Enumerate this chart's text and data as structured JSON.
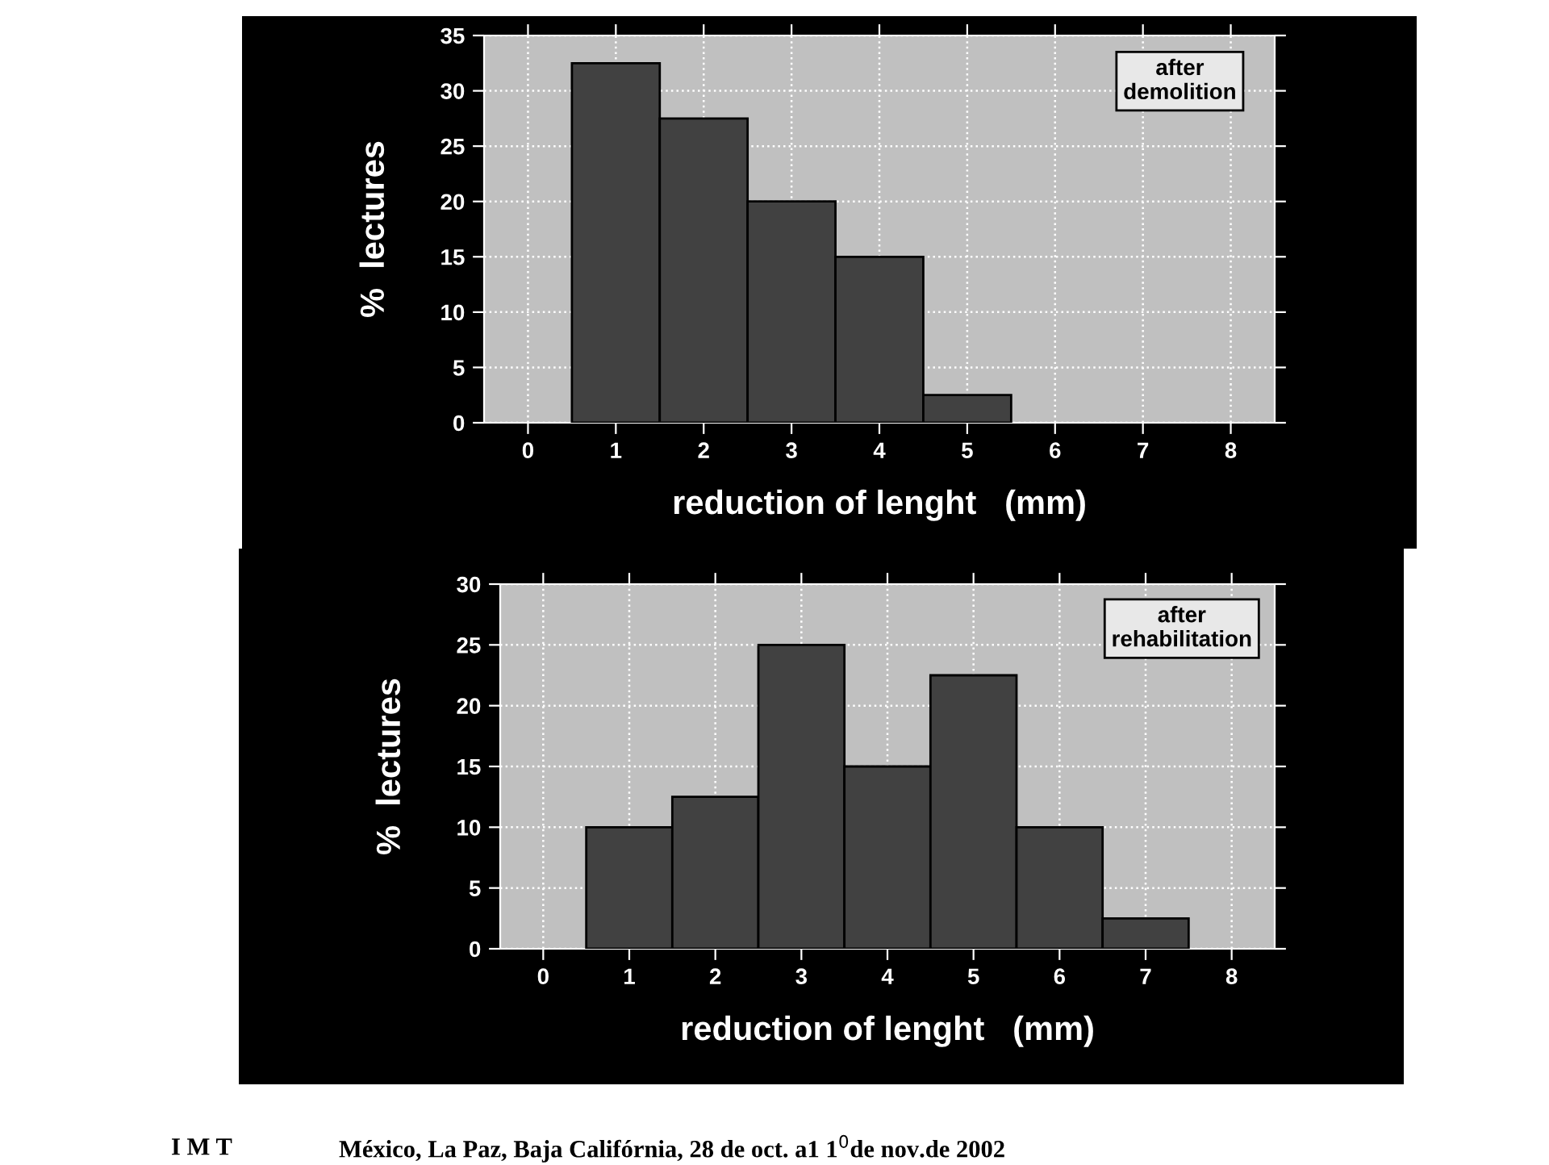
{
  "chart_data": [
    {
      "type": "histogram",
      "xlabel": "reduction of lenght   (mm)",
      "ylabel": "%  lectures",
      "bins": [
        0.5,
        1.5,
        2.5,
        3.5,
        4.5,
        5.5
      ],
      "values": [
        32.5,
        27.5,
        20,
        15,
        2.5
      ],
      "color": "#414141",
      "xlim": [
        -0.5,
        8.5
      ],
      "xticks": [
        0,
        1,
        2,
        3,
        4,
        5,
        6,
        7,
        8
      ],
      "ylim": [
        0,
        35
      ],
      "yticks": [
        0,
        5,
        10,
        15,
        20,
        25,
        30,
        35
      ],
      "grid": true,
      "annotations": [
        "after\ndemolition"
      ]
    },
    {
      "type": "histogram",
      "xlabel": "reduction of lenght   (mm)",
      "ylabel": "%  lectures",
      "bins": [
        0.5,
        1.5,
        2.5,
        3.5,
        4.5,
        5.5,
        6.5,
        7.5
      ],
      "values": [
        10,
        12.5,
        25,
        15,
        22.5,
        10,
        2.5
      ],
      "color": "#414141",
      "xlim": [
        -0.5,
        8.5
      ],
      "xticks": [
        0,
        1,
        2,
        3,
        4,
        5,
        6,
        7,
        8
      ],
      "ylim": [
        0,
        30
      ],
      "yticks": [
        0,
        5,
        10,
        15,
        20,
        25,
        30
      ],
      "grid": true,
      "annotations": [
        "after\nrehabilitation",
        "I M T",
        "México, La Paz, Baja Califórnia, 28 de oct. a1 1$^{0}$de nov.de 2002"
      ]
    }
  ]
}
